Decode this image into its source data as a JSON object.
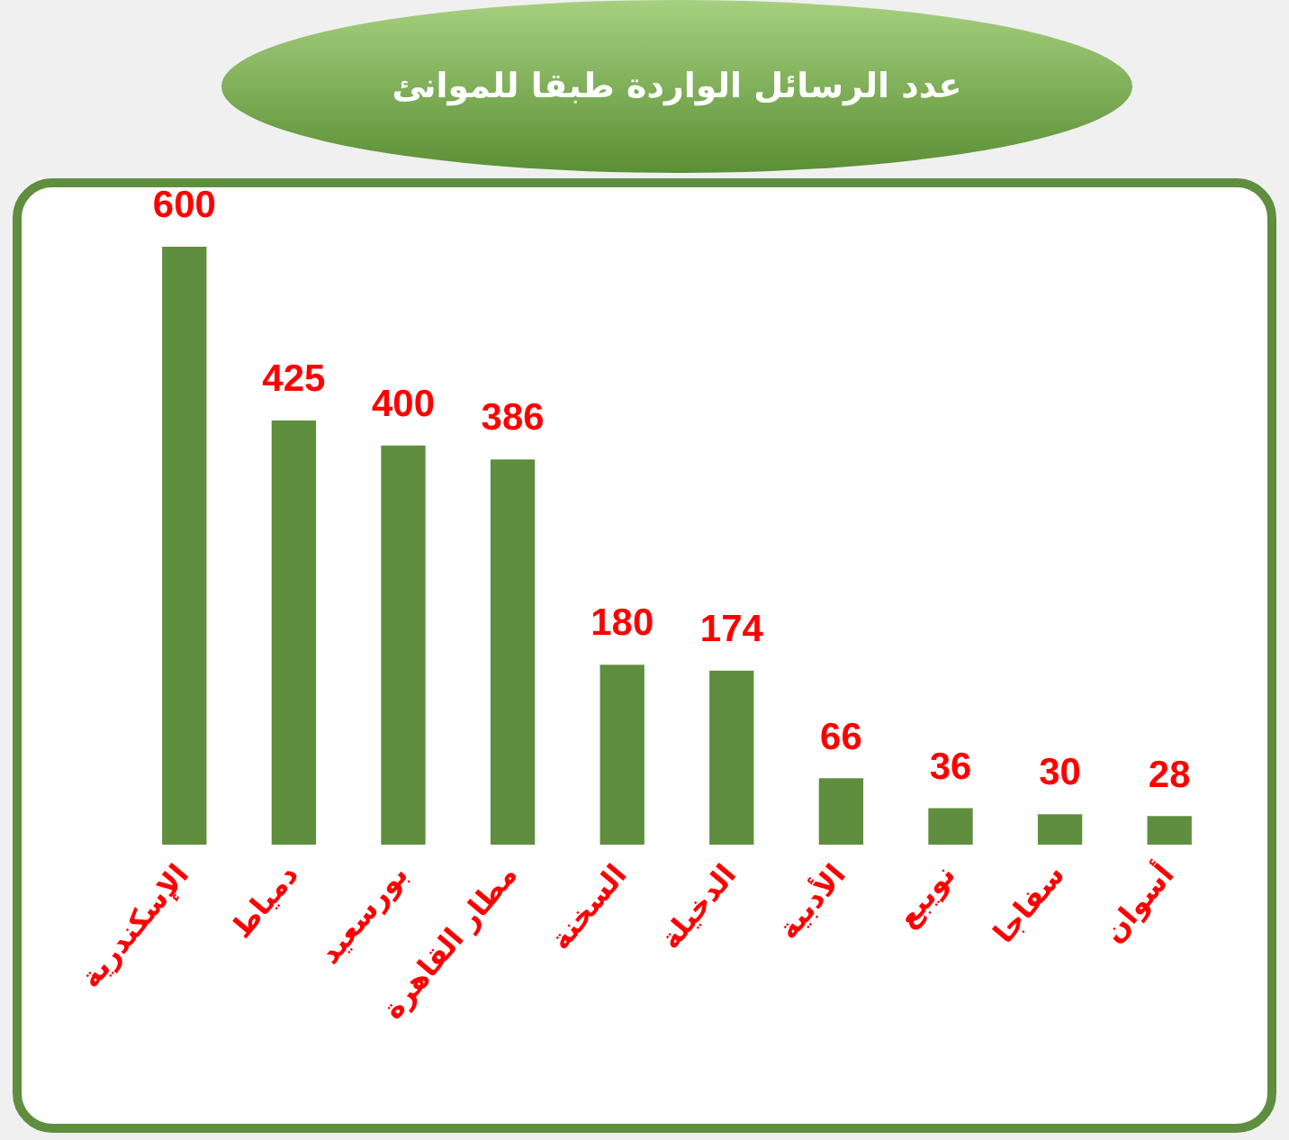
{
  "chart_data": {
    "type": "bar",
    "title": "عدد الرسائل الواردة طبقا للموانئ",
    "categories": [
      "الإسكندرية",
      "دمياط",
      "بورسعيد",
      "مطار القاهرة",
      "السخنة",
      "الدخيلة",
      "الأدبية",
      "نويبع",
      "سفاجا",
      "أسوان"
    ],
    "values": [
      600,
      425,
      400,
      386,
      180,
      174,
      66,
      36,
      30,
      28
    ],
    "color": "#5e8e3e",
    "data_labels": true
  }
}
